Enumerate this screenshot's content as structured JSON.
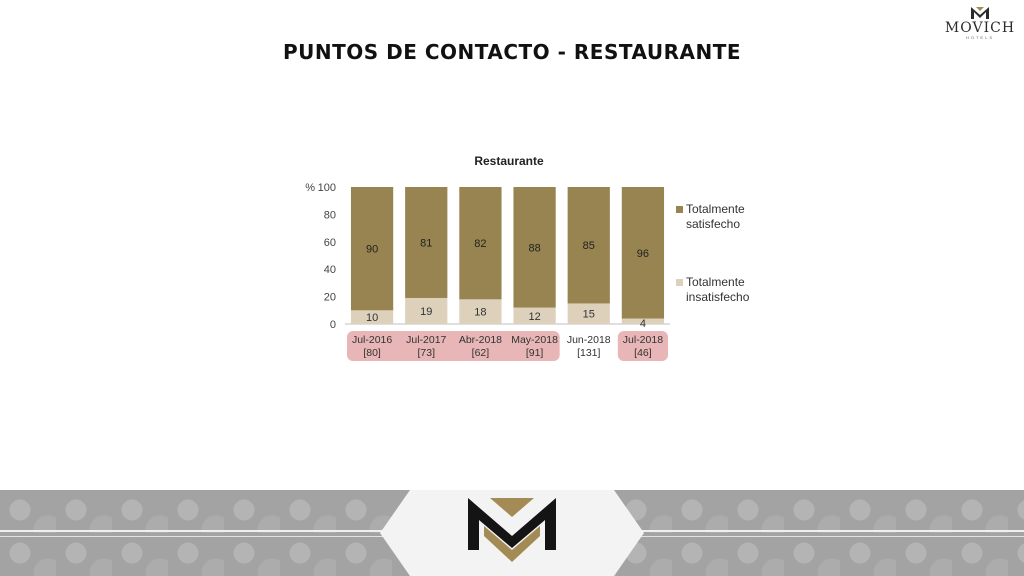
{
  "header": {
    "brand": "MOVICH",
    "brand_sub": "HOTELS",
    "title": "PUNTOS DE CONTACTO - RESTAURANTE"
  },
  "colors": {
    "satisfied": "#978451",
    "dissatisfied": "#ddd1bc",
    "highlight": "#e8b6b6",
    "gold": "#a48b55"
  },
  "chart_data": {
    "type": "bar",
    "stacked": true,
    "title": "Restaurante",
    "y_unit_label": "%",
    "ylim": [
      0,
      100
    ],
    "yticks": [
      0,
      20,
      40,
      60,
      80,
      100
    ],
    "grid": false,
    "legend_position": "right",
    "categories": [
      "Jul-2016",
      "Jul-2017",
      "Abr-2018",
      "May-2018",
      "Jun-2018",
      "Jul-2018"
    ],
    "sample_sizes": [
      "[80]",
      "[73]",
      "[62]",
      "[91]",
      "[131]",
      "[46]"
    ],
    "highlighted": [
      true,
      true,
      true,
      true,
      false,
      true
    ],
    "series": [
      {
        "name": "Totalmente insatisfecho",
        "values": [
          10,
          19,
          18,
          12,
          15,
          4
        ]
      },
      {
        "name": "Totalmente satisfecho",
        "values": [
          90,
          81,
          82,
          88,
          85,
          96
        ]
      }
    ],
    "legend": [
      {
        "line1": "Totalmente",
        "line2": "satisfecho"
      },
      {
        "line1": "Totalmente",
        "line2": "insatisfecho"
      }
    ]
  }
}
